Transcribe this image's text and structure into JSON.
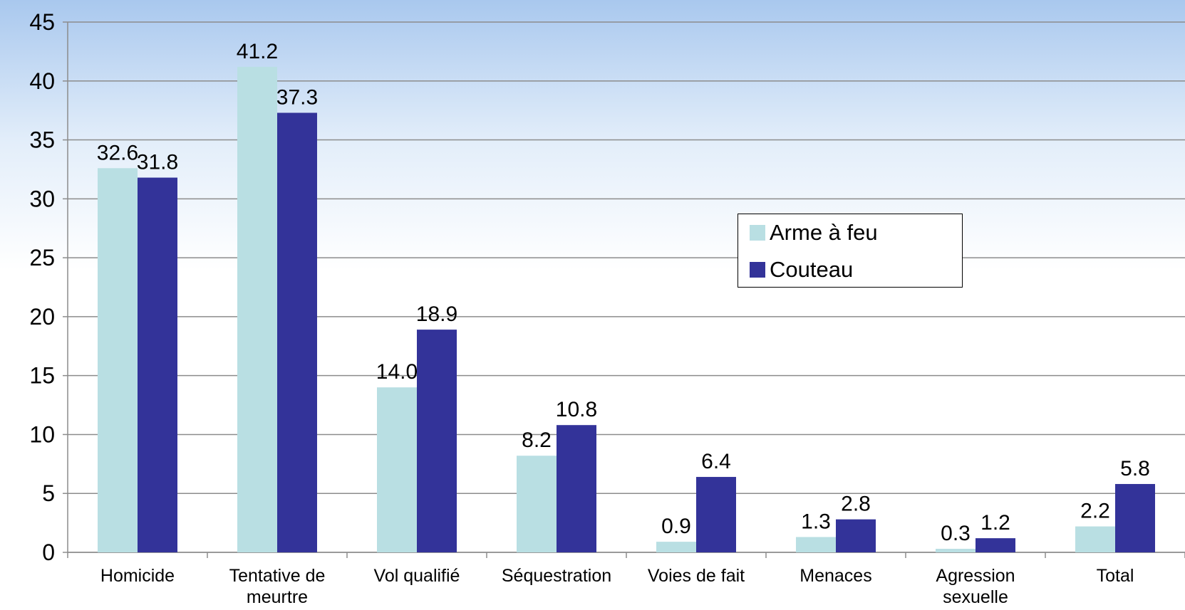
{
  "chart_data": {
    "type": "bar",
    "categories": [
      "Homicide",
      "Tentative de meurtre",
      "Vol qualifié",
      "Séquestration",
      "Voies de fait",
      "Menaces",
      "Agression sexuelle",
      "Total"
    ],
    "series": [
      {
        "name": "Arme à feu",
        "color": "#b9dfe3",
        "values": [
          32.6,
          41.2,
          14.0,
          8.2,
          0.9,
          1.3,
          0.3,
          2.2
        ],
        "value_labels": [
          "32.6",
          "41.2",
          "14.0",
          "8.2",
          "0.9",
          "1.3",
          "0.3",
          "2.2"
        ]
      },
      {
        "name": "Couteau",
        "color": "#333399",
        "values": [
          31.8,
          37.3,
          18.9,
          10.8,
          6.4,
          2.8,
          1.2,
          5.8
        ],
        "value_labels": [
          "31.8",
          "37.3",
          "18.9",
          "10.8",
          "6.4",
          "2.8",
          "1.2",
          "5.8"
        ]
      }
    ],
    "ylim": [
      0,
      45
    ],
    "yticks": [
      0,
      5,
      10,
      15,
      20,
      25,
      30,
      35,
      40,
      45
    ],
    "grid": true
  }
}
